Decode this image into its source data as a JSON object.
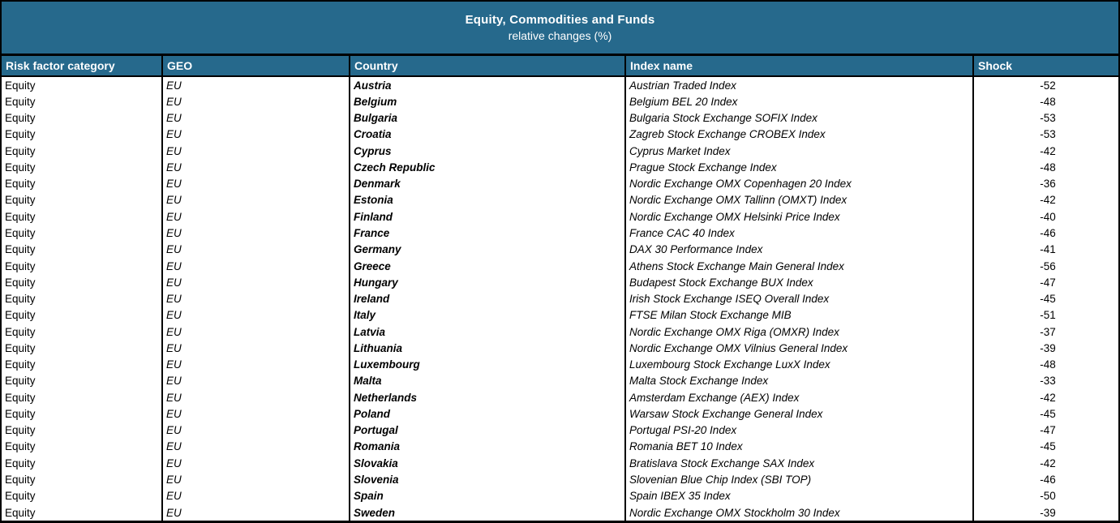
{
  "banner": {
    "title": "Equity, Commodities and Funds",
    "subtitle": "relative changes (%)"
  },
  "table": {
    "columns": [
      "Risk factor category",
      "GEO",
      "Country",
      "Index name",
      "Shock"
    ],
    "rows": [
      {
        "category": "Equity",
        "geo": "EU",
        "country": "Austria",
        "index": "Austrian Traded Index",
        "shock": -52
      },
      {
        "category": "Equity",
        "geo": "EU",
        "country": "Belgium",
        "index": "Belgium BEL 20 Index",
        "shock": -48
      },
      {
        "category": "Equity",
        "geo": "EU",
        "country": "Bulgaria",
        "index": "Bulgaria Stock Exchange SOFIX Index",
        "shock": -53
      },
      {
        "category": "Equity",
        "geo": "EU",
        "country": "Croatia",
        "index": "Zagreb Stock Exchange CROBEX Index",
        "shock": -53
      },
      {
        "category": "Equity",
        "geo": "EU",
        "country": "Cyprus",
        "index": "Cyprus Market Index",
        "shock": -42
      },
      {
        "category": "Equity",
        "geo": "EU",
        "country": "Czech Republic",
        "index": "Prague Stock Exchange Index",
        "shock": -48
      },
      {
        "category": "Equity",
        "geo": "EU",
        "country": "Denmark",
        "index": "Nordic Exchange OMX Copenhagen 20 Index",
        "shock": -36
      },
      {
        "category": "Equity",
        "geo": "EU",
        "country": "Estonia",
        "index": "Nordic Exchange OMX Tallinn (OMXT) Index",
        "shock": -42
      },
      {
        "category": "Equity",
        "geo": "EU",
        "country": "Finland",
        "index": "Nordic Exchange OMX Helsinki Price Index",
        "shock": -40
      },
      {
        "category": "Equity",
        "geo": "EU",
        "country": "France",
        "index": "France CAC 40 Index",
        "shock": -46
      },
      {
        "category": "Equity",
        "geo": "EU",
        "country": "Germany",
        "index": "DAX 30 Performance Index",
        "shock": -41
      },
      {
        "category": "Equity",
        "geo": "EU",
        "country": "Greece",
        "index": "Athens Stock Exchange Main General Index",
        "shock": -56
      },
      {
        "category": "Equity",
        "geo": "EU",
        "country": "Hungary",
        "index": "Budapest Stock Exchange BUX Index",
        "shock": -47
      },
      {
        "category": "Equity",
        "geo": "EU",
        "country": "Ireland",
        "index": "Irish Stock Exchange ISEQ Overall Index",
        "shock": -45
      },
      {
        "category": "Equity",
        "geo": "EU",
        "country": "Italy",
        "index": "FTSE Milan Stock Exchange MIB",
        "shock": -51
      },
      {
        "category": "Equity",
        "geo": "EU",
        "country": "Latvia",
        "index": "Nordic Exchange OMX Riga (OMXR) Index",
        "shock": -37
      },
      {
        "category": "Equity",
        "geo": "EU",
        "country": "Lithuania",
        "index": "Nordic Exchange OMX Vilnius General Index",
        "shock": -39
      },
      {
        "category": "Equity",
        "geo": "EU",
        "country": "Luxembourg",
        "index": "Luxembourg Stock Exchange LuxX Index",
        "shock": -48
      },
      {
        "category": "Equity",
        "geo": "EU",
        "country": "Malta",
        "index": "Malta Stock Exchange Index",
        "shock": -33
      },
      {
        "category": "Equity",
        "geo": "EU",
        "country": "Netherlands",
        "index": "Amsterdam Exchange (AEX) Index",
        "shock": -42
      },
      {
        "category": "Equity",
        "geo": "EU",
        "country": "Poland",
        "index": "Warsaw Stock Exchange General Index",
        "shock": -45
      },
      {
        "category": "Equity",
        "geo": "EU",
        "country": "Portugal",
        "index": "Portugal PSI-20 Index",
        "shock": -47
      },
      {
        "category": "Equity",
        "geo": "EU",
        "country": "Romania",
        "index": "Romania BET 10 Index",
        "shock": -45
      },
      {
        "category": "Equity",
        "geo": "EU",
        "country": "Slovakia",
        "index": "Bratislava Stock Exchange SAX Index",
        "shock": -42
      },
      {
        "category": "Equity",
        "geo": "EU",
        "country": "Slovenia",
        "index": "Slovenian Blue Chip Index (SBI TOP)",
        "shock": -46
      },
      {
        "category": "Equity",
        "geo": "EU",
        "country": "Spain",
        "index": "Spain IBEX 35 Index",
        "shock": -50
      },
      {
        "category": "Equity",
        "geo": "EU",
        "country": "Sweden",
        "index": "Nordic Exchange OMX Stockholm 30 Index",
        "shock": -39
      }
    ]
  },
  "colors": {
    "header_bg": "#26698C",
    "header_text": "#FFFFFF",
    "body_text": "#000000",
    "border": "#000000"
  }
}
